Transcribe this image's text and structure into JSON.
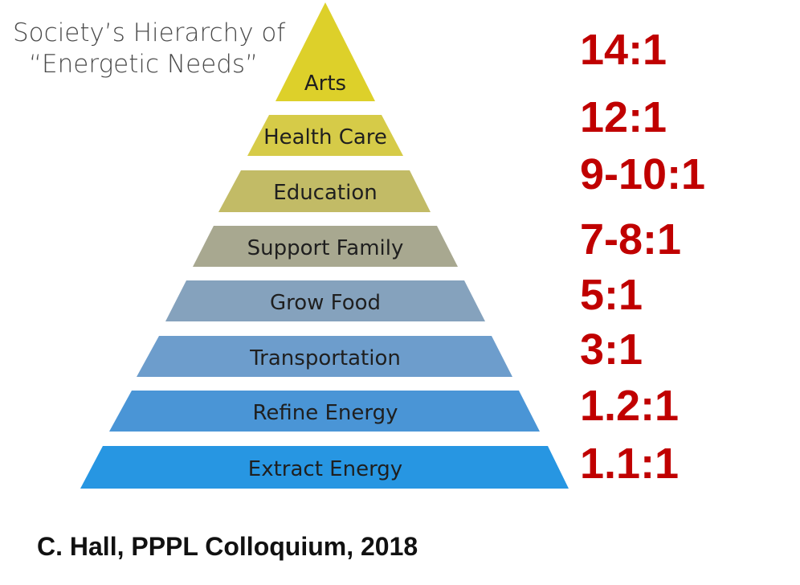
{
  "title": {
    "line1": "Society’s Hierarchy of",
    "line2": "“Energetic Needs”"
  },
  "levels": [
    {
      "label": "Arts",
      "ratio": "14:1",
      "color": "#ddd02a"
    },
    {
      "label": "Health Care",
      "ratio": "12:1",
      "color": "#d6cb48"
    },
    {
      "label": "Education",
      "ratio": "9-10:1",
      "color": "#c2bb66"
    },
    {
      "label": "Support Family",
      "ratio": "7-8:1",
      "color": "#a8a890"
    },
    {
      "label": "Grow Food",
      "ratio": "5:1",
      "color": "#85a2bd"
    },
    {
      "label": "Transportation",
      "ratio": "3:1",
      "color": "#6d9dcc"
    },
    {
      "label": "Refine Energy",
      "ratio": "1.2:1",
      "color": "#4a95d6"
    },
    {
      "label": "Extract Energy",
      "ratio": "1.1:1",
      "color": "#2796e2"
    }
  ],
  "credit": "C. Hall, PPPL Colloquium, 2018"
}
